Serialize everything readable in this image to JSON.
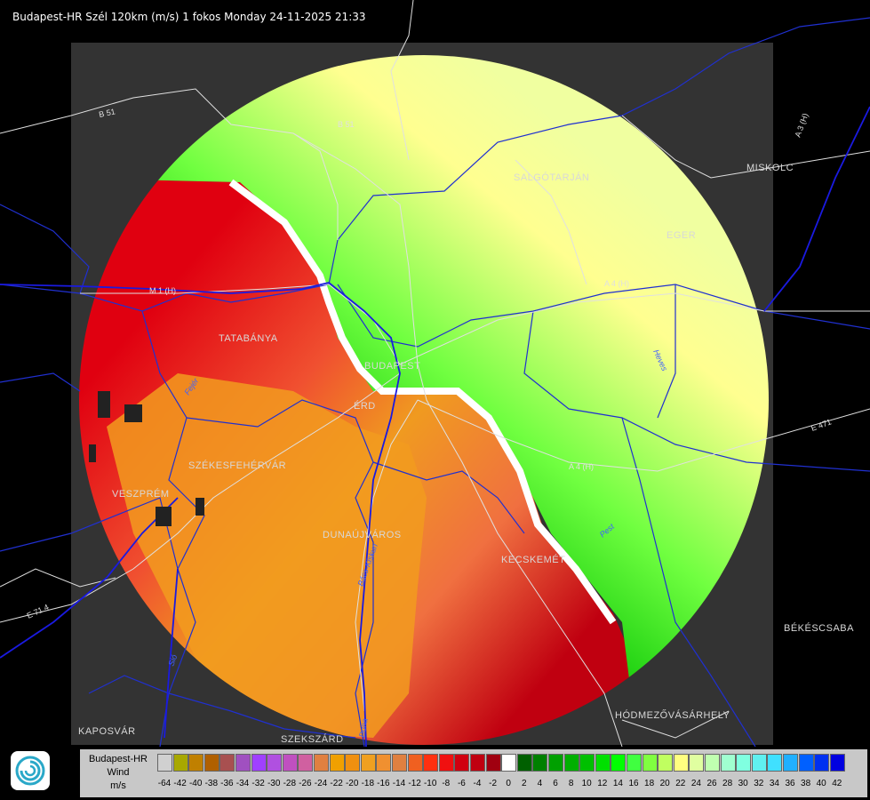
{
  "header": {
    "title": "Budapest-HR Szél 120km (m/s) 1 fokos Monday 24-11-2025 21:33"
  },
  "cities": {
    "salgotarjan": "SALGÓTARJÁN",
    "miskolc": "MISKOLC",
    "eger": "EGER",
    "tatabanya": "TATABÁNYA",
    "budapest": "BUDAPEST",
    "erd": "ÉRD",
    "szekesfehervar": "SZÉKESFEHÉRVÁR",
    "veszprem": "VESZPRÉM",
    "dunaujvaros": "DUNAÚJVÁROS",
    "kecskemet": "KECSKEMÉT",
    "bekescsaba": "BÉKÉSCSABA",
    "hodmezovasarhely": "HÓDMEZŐVÁSÁRHELY",
    "kaposvar": "KAPOSVÁR",
    "szekszard": "SZEKSZÁRD"
  },
  "roads": {
    "b51": "B 51",
    "b51b": "B 51",
    "m1": "M 1 (H)",
    "a3": "A 3 (H)",
    "a4": "A 4 (H)",
    "e471": "E 471",
    "e714": "E 71 4",
    "a4b": "A 4 (H)"
  },
  "rivers": {
    "duna": "Duna",
    "sio": "Sió",
    "heves": "Heves",
    "pest": "Pest",
    "bacskiskun": "Bács-Kiskun",
    "fejer": "Fejér"
  },
  "legend": {
    "line1": "Budapest-HR",
    "line2": "Wind",
    "line3": "m/s",
    "ticks": [
      "-64",
      "-42",
      "-40",
      "-38",
      "-36",
      "-34",
      "-32",
      "-30",
      "-28",
      "-26",
      "-24",
      "-22",
      "-20",
      "-18",
      "-16",
      "-14",
      "-12",
      "-10",
      "-8",
      "-6",
      "-4",
      "-2",
      "0",
      "2",
      "4",
      "6",
      "8",
      "10",
      "12",
      "14",
      "16",
      "18",
      "20",
      "22",
      "24",
      "26",
      "28",
      "30",
      "32",
      "34",
      "36",
      "38",
      "40",
      "42"
    ],
    "colors": [
      "#d0d0d0",
      "#a8a800",
      "#c08000",
      "#b06000",
      "#a85050",
      "#a050c0",
      "#a040ff",
      "#b050e0",
      "#c050c0",
      "#d060a0",
      "#e08040",
      "#f0a000",
      "#f09010",
      "#f0a020",
      "#f09030",
      "#e08040",
      "#f06020",
      "#ff3010",
      "#f01010",
      "#d00010",
      "#c00010",
      "#a00010",
      "#ffffff",
      "#006000",
      "#008000",
      "#00a000",
      "#00b000",
      "#00c000",
      "#00e000",
      "#00ff00",
      "#40ff40",
      "#80ff40",
      "#c0ff60",
      "#ffff80",
      "#e0ffa0",
      "#c0ffb0",
      "#a0ffd0",
      "#80ffe0",
      "#60f0f0",
      "#40e0ff",
      "#20b0ff",
      "#0060ff",
      "#0030f0",
      "#0000e0"
    ]
  }
}
